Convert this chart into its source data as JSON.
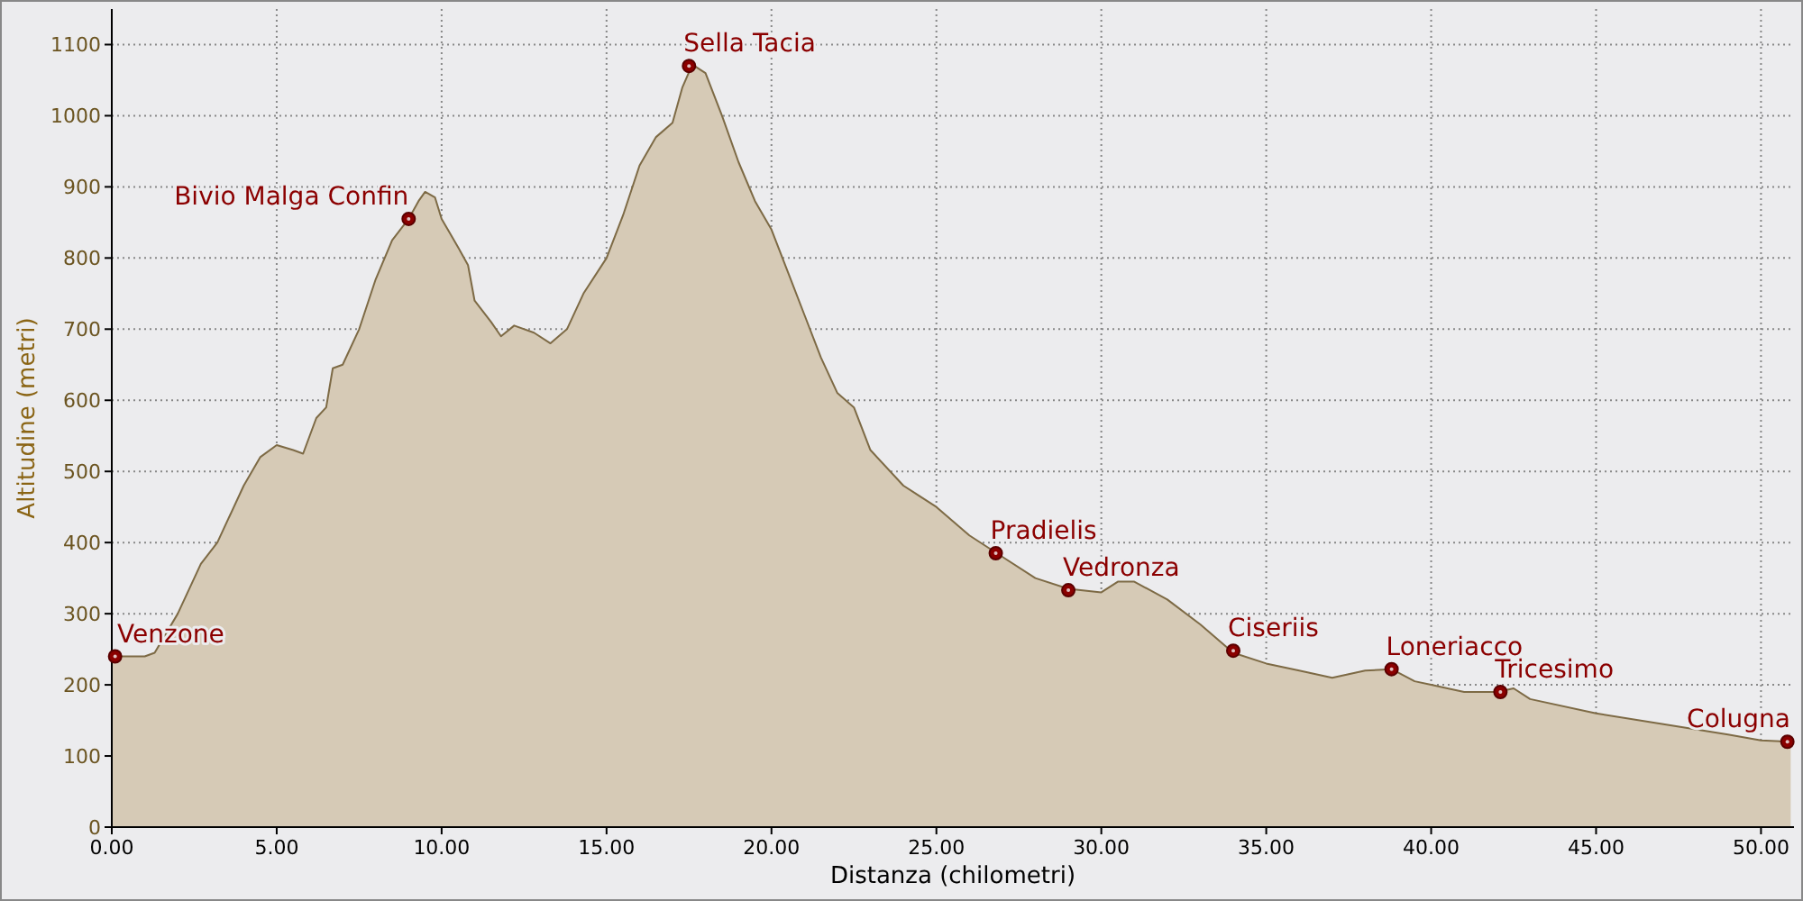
{
  "chart_data": {
    "type": "area",
    "xlabel": "Distanza (chilometri)",
    "ylabel": "Altitudine (metri)",
    "x": [
      0,
      1,
      1.3,
      2,
      2.7,
      3.2,
      4,
      4.5,
      5,
      5.5,
      5.8,
      6.2,
      6.5,
      6.7,
      7,
      7.5,
      8,
      8.5,
      9,
      9.3,
      9.5,
      9.8,
      10,
      10.5,
      10.8,
      11,
      11.5,
      11.8,
      12.2,
      12.8,
      13.3,
      13.8,
      14.3,
      15,
      15.5,
      16,
      16.5,
      17,
      17.3,
      17.6,
      18,
      18.5,
      19,
      19.5,
      20,
      20.5,
      21,
      21.5,
      22,
      22.5,
      23,
      24,
      25,
      26,
      27,
      28,
      29,
      30,
      30.5,
      31,
      32,
      33,
      34,
      35,
      36,
      37,
      37.5,
      38,
      38.8,
      39.5,
      40,
      41,
      42,
      42.5,
      43,
      45,
      47,
      49,
      50,
      50.9
    ],
    "series": [
      {
        "color": "#d6cab6",
        "values": [
          240,
          240,
          245,
          300,
          370,
          400,
          480,
          520,
          537,
          530,
          525,
          575,
          590,
          645,
          650,
          700,
          770,
          825,
          855,
          880,
          893,
          885,
          855,
          815,
          790,
          740,
          710,
          690,
          705,
          695,
          680,
          700,
          750,
          800,
          860,
          930,
          970,
          990,
          1040,
          1072,
          1060,
          1000,
          935,
          880,
          840,
          780,
          720,
          660,
          610,
          590,
          530,
          480,
          450,
          410,
          380,
          350,
          335,
          330,
          345,
          345,
          320,
          285,
          245,
          230,
          220,
          210,
          215,
          220,
          222,
          205,
          200,
          190,
          190,
          195,
          180,
          160,
          145,
          130,
          122,
          120
        ]
      }
    ],
    "xlim": [
      0,
      51
    ],
    "ylim": [
      0,
      1150
    ],
    "xticks": [
      {
        "value": 0,
        "label": "0.00"
      },
      {
        "value": 5,
        "label": "5.00"
      },
      {
        "value": 10,
        "label": "10.00"
      },
      {
        "value": 15,
        "label": "15.00"
      },
      {
        "value": 20,
        "label": "20.00"
      },
      {
        "value": 25,
        "label": "25.00"
      },
      {
        "value": 30,
        "label": "30.00"
      },
      {
        "value": 35,
        "label": "35.00"
      },
      {
        "value": 40,
        "label": "40.00"
      },
      {
        "value": 45,
        "label": "45.00"
      },
      {
        "value": 50,
        "label": "50.00"
      }
    ],
    "yticks": [
      0,
      100,
      200,
      300,
      400,
      500,
      600,
      700,
      800,
      900,
      1000,
      1100
    ],
    "grid": true,
    "annotations": [
      {
        "text": "Venzone",
        "x": 0.1,
        "y": 240
      },
      {
        "text": "Bivio Malga Confin",
        "x": 9,
        "y": 855
      },
      {
        "text": "Sella Tacia",
        "x": 17.5,
        "y": 1070
      },
      {
        "text": "Pradielis",
        "x": 26.8,
        "y": 385
      },
      {
        "text": "Vedronza",
        "x": 29,
        "y": 333
      },
      {
        "text": "Ciseriis",
        "x": 34,
        "y": 248
      },
      {
        "text": "Loneriacco",
        "x": 38.8,
        "y": 222
      },
      {
        "text": "Tricesimo",
        "x": 42.1,
        "y": 190
      },
      {
        "text": "Colugna",
        "x": 50.8,
        "y": 120
      }
    ]
  }
}
